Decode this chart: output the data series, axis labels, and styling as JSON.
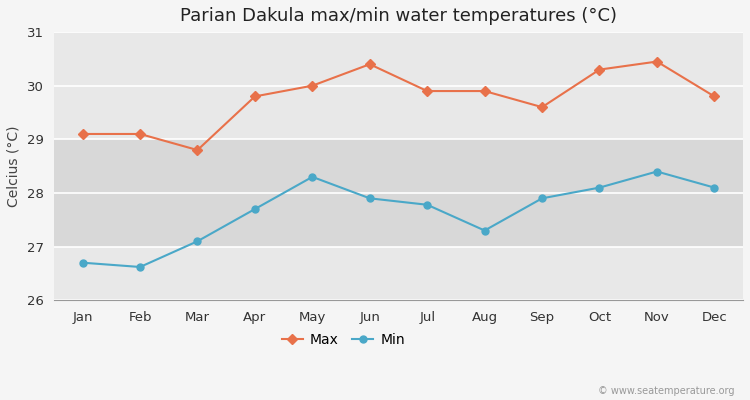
{
  "title": "Parian Dakula max/min water temperatures (°C)",
  "ylabel": "Celcius (°C)",
  "months": [
    "Jan",
    "Feb",
    "Mar",
    "Apr",
    "May",
    "Jun",
    "Jul",
    "Aug",
    "Sep",
    "Oct",
    "Nov",
    "Dec"
  ],
  "max_values": [
    29.1,
    29.1,
    28.8,
    29.8,
    30.0,
    30.4,
    29.9,
    29.9,
    29.6,
    30.3,
    30.45,
    29.8
  ],
  "min_values": [
    26.7,
    26.62,
    27.1,
    27.7,
    28.3,
    27.9,
    27.78,
    27.3,
    27.9,
    28.1,
    28.4,
    28.1
  ],
  "max_color": "#e8714a",
  "min_color": "#4aa8c8",
  "ylim": [
    26,
    31
  ],
  "yticks": [
    26,
    27,
    28,
    29,
    30,
    31
  ],
  "bg_color": "#f5f5f5",
  "plot_bg_light": "#e8e8e8",
  "plot_bg_dark": "#d8d8d8",
  "grid_color": "#ffffff",
  "watermark": "© www.seatemperature.org",
  "legend_max": "Max",
  "legend_min": "Min",
  "title_fontsize": 13,
  "label_fontsize": 10,
  "tick_fontsize": 9.5,
  "marker_size": 5,
  "line_width": 1.5
}
